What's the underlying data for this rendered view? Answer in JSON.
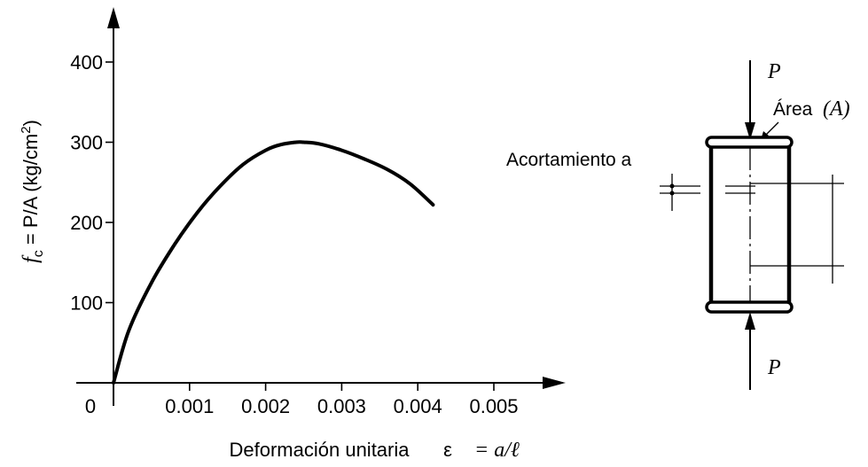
{
  "chart_data": {
    "type": "line",
    "xlabel": "Deformación unitaria",
    "xlabel_symbol": "ε",
    "xlabel_formula": "= a/ℓ",
    "ylabel": "f_c = P/A (kg/cm²)",
    "ylabel_parts": {
      "symbol": "f",
      "subscript": "c",
      "formula": " = P/A (kg/cm",
      "sup": "2",
      "close": ")"
    },
    "xlim": [
      0,
      0.0055
    ],
    "ylim": [
      0,
      450
    ],
    "x_ticks": [
      0.001,
      0.002,
      0.003,
      0.004,
      0.005
    ],
    "x_tick_labels": [
      "0.001",
      "0.002",
      "0.003",
      "0.004",
      "0.005"
    ],
    "y_ticks": [
      100,
      200,
      300,
      400
    ],
    "y_tick_labels": [
      "100",
      "200",
      "300",
      "400"
    ],
    "origin_label": "0",
    "grid": false,
    "series": [
      {
        "x": [
          0,
          0.0002,
          0.0005,
          0.0008,
          0.0011,
          0.0014,
          0.0017,
          0.002,
          0.0022,
          0.0024,
          0.0025,
          0.0027,
          0.003,
          0.0033,
          0.0036,
          0.0039,
          0.0042
        ],
        "y": [
          0,
          65,
          125,
          172,
          212,
          245,
          272,
          290,
          297,
          300,
          300,
          298,
          290,
          279,
          266,
          248,
          222
        ]
      }
    ]
  },
  "diagram": {
    "load_top": "P",
    "load_bottom": "P",
    "area_label": "Área",
    "area_symbol": "(A)",
    "shortening_label": "Acortamiento a"
  }
}
